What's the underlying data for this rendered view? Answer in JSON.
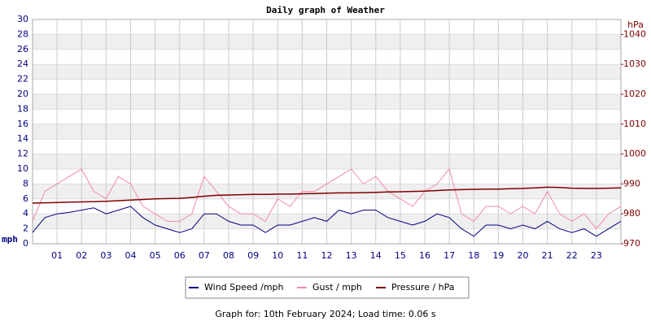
{
  "chart_data": {
    "type": "line",
    "title": "Daily graph of Weather",
    "ylabel": "mph",
    "y2label": "hPa",
    "footer": "Graph for: 10th February 2024; Load time: 0.06 s",
    "x": [
      0,
      0.5,
      1,
      1.5,
      2,
      2.5,
      3,
      3.5,
      4,
      4.5,
      5,
      5.5,
      6,
      6.5,
      7,
      7.5,
      8,
      8.5,
      9,
      9.5,
      10,
      10.5,
      11,
      11.5,
      12,
      12.5,
      13,
      13.5,
      14,
      14.5,
      15,
      15.5,
      16,
      16.5,
      17,
      17.5,
      18,
      18.5,
      19,
      19.5,
      20,
      20.5,
      21,
      21.5,
      22,
      22.5,
      23,
      23.5,
      24
    ],
    "xlim": [
      0,
      24
    ],
    "xticks": [
      {
        "value": 1,
        "label": "01"
      },
      {
        "value": 2,
        "label": "02"
      },
      {
        "value": 3,
        "label": "03"
      },
      {
        "value": 4,
        "label": "04"
      },
      {
        "value": 5,
        "label": "05"
      },
      {
        "value": 6,
        "label": "06"
      },
      {
        "value": 7,
        "label": "07"
      },
      {
        "value": 8,
        "label": "08"
      },
      {
        "value": 9,
        "label": "09"
      },
      10,
      11,
      12,
      13,
      14,
      15,
      16,
      17,
      18,
      19,
      20,
      21,
      22,
      23
    ],
    "ylim": [
      0,
      30
    ],
    "yticks": [
      0,
      2,
      4,
      6,
      8,
      10,
      12,
      14,
      16,
      18,
      20,
      22,
      24,
      26,
      28,
      30
    ],
    "y2lim": [
      970,
      1045
    ],
    "y2ticks": [
      970,
      980,
      990,
      1000,
      1010,
      1020,
      1030,
      1040
    ],
    "grid": true,
    "series": [
      {
        "name": "Wind Speed /mph",
        "color": "#000080",
        "values": [
          1.5,
          3.5,
          4,
          4.2,
          4.5,
          4.8,
          4,
          4.5,
          5,
          3.5,
          2.5,
          2,
          1.5,
          2,
          4,
          4,
          3,
          2.5,
          2.5,
          1.5,
          2.5,
          2.5,
          3,
          3.5,
          3,
          4.5,
          4,
          4.5,
          4.5,
          3.5,
          3,
          2.5,
          3,
          4,
          3.5,
          2,
          1,
          2.5,
          2.5,
          2,
          2.5,
          2,
          3,
          2,
          1.5,
          2,
          1,
          2,
          3
        ]
      },
      {
        "name": "Gust / mph",
        "color": "#f48aac",
        "values": [
          3,
          7,
          8,
          9,
          10,
          7,
          6,
          9,
          8,
          5,
          4,
          3,
          3,
          4,
          9,
          7,
          5,
          4,
          4,
          3,
          6,
          5,
          7,
          7,
          8,
          9,
          10,
          8,
          9,
          7,
          6,
          5,
          7,
          8,
          10,
          4,
          3,
          5,
          5,
          4,
          5,
          4,
          7,
          4,
          3,
          4,
          2,
          4,
          5
        ]
      },
      {
        "name": "Pressure / hPa",
        "color": "#800000",
        "axis": "y2",
        "values": [
          983.6,
          983.7,
          983.8,
          983.9,
          984,
          984.1,
          984.2,
          984.4,
          984.6,
          984.8,
          985,
          985.1,
          985.2,
          985.5,
          985.9,
          986.2,
          986.3,
          986.4,
          986.5,
          986.5,
          986.6,
          986.6,
          986.7,
          986.8,
          986.9,
          987,
          987,
          987.1,
          987.2,
          987.3,
          987.4,
          987.5,
          987.6,
          987.8,
          988,
          988.1,
          988.2,
          988.3,
          988.3,
          988.4,
          988.5,
          988.7,
          988.9,
          988.8,
          988.6,
          988.5,
          988.5,
          988.6,
          988.7
        ]
      }
    ]
  }
}
